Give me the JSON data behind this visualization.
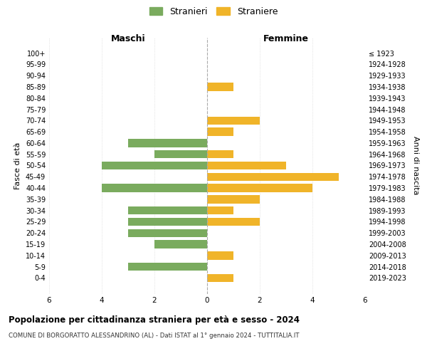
{
  "age_groups": [
    "100+",
    "95-99",
    "90-94",
    "85-89",
    "80-84",
    "75-79",
    "70-74",
    "65-69",
    "60-64",
    "55-59",
    "50-54",
    "45-49",
    "40-44",
    "35-39",
    "30-34",
    "25-29",
    "20-24",
    "15-19",
    "10-14",
    "5-9",
    "0-4"
  ],
  "birth_years": [
    "≤ 1923",
    "1924-1928",
    "1929-1933",
    "1934-1938",
    "1939-1943",
    "1944-1948",
    "1949-1953",
    "1954-1958",
    "1959-1963",
    "1964-1968",
    "1969-1973",
    "1974-1978",
    "1979-1983",
    "1984-1988",
    "1989-1993",
    "1994-1998",
    "1999-2003",
    "2004-2008",
    "2009-2013",
    "2014-2018",
    "2019-2023"
  ],
  "maschi": [
    0,
    0,
    0,
    0,
    0,
    0,
    0,
    0,
    3,
    2,
    4,
    0,
    4,
    0,
    3,
    3,
    3,
    2,
    0,
    3,
    0
  ],
  "femmine": [
    0,
    0,
    0,
    1,
    0,
    0,
    2,
    1,
    0,
    1,
    3,
    5,
    4,
    2,
    1,
    2,
    0,
    0,
    1,
    0,
    1
  ],
  "color_maschi": "#7aab5e",
  "color_femmine": "#f0b429",
  "title": "Popolazione per cittadinanza straniera per età e sesso - 2024",
  "subtitle": "COMUNE DI BORGORATTO ALESSANDRINO (AL) - Dati ISTAT al 1° gennaio 2024 - TUTTITALIA.IT",
  "xlabel_left": "Maschi",
  "xlabel_right": "Femmine",
  "ylabel_left": "Fasce di età",
  "ylabel_right": "Anni di nascita",
  "legend_maschi": "Stranieri",
  "legend_femmine": "Straniere",
  "xlim": 6,
  "background_color": "#ffffff",
  "grid_color": "#d0d0d0"
}
